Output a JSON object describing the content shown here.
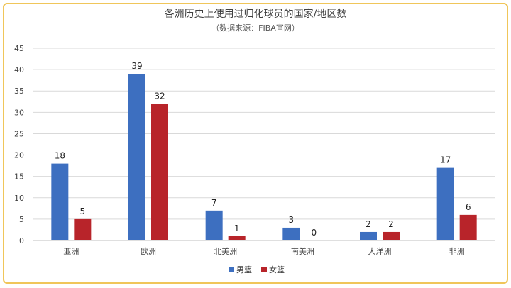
{
  "chart_data": {
    "type": "bar",
    "title": "各洲历史上使用过归化球员的国家/地区数",
    "subtitle": "（数据来源：FIBA官网）",
    "categories": [
      "亚洲",
      "欧洲",
      "北美洲",
      "南美洲",
      "大洋洲",
      "非洲"
    ],
    "series": [
      {
        "name": "男篮",
        "color": "#3d6fc0",
        "values": [
          18,
          39,
          7,
          3,
          2,
          17
        ]
      },
      {
        "name": "女篮",
        "color": "#b8242a",
        "values": [
          5,
          32,
          1,
          0,
          2,
          6
        ]
      }
    ],
    "yticks": [
      "0",
      "5",
      "10",
      "15",
      "20",
      "25",
      "30",
      "35",
      "40",
      "45"
    ],
    "ylim": [
      0,
      45
    ],
    "grid": true,
    "legend_position": "bottom",
    "xlabel": "",
    "ylabel": ""
  }
}
